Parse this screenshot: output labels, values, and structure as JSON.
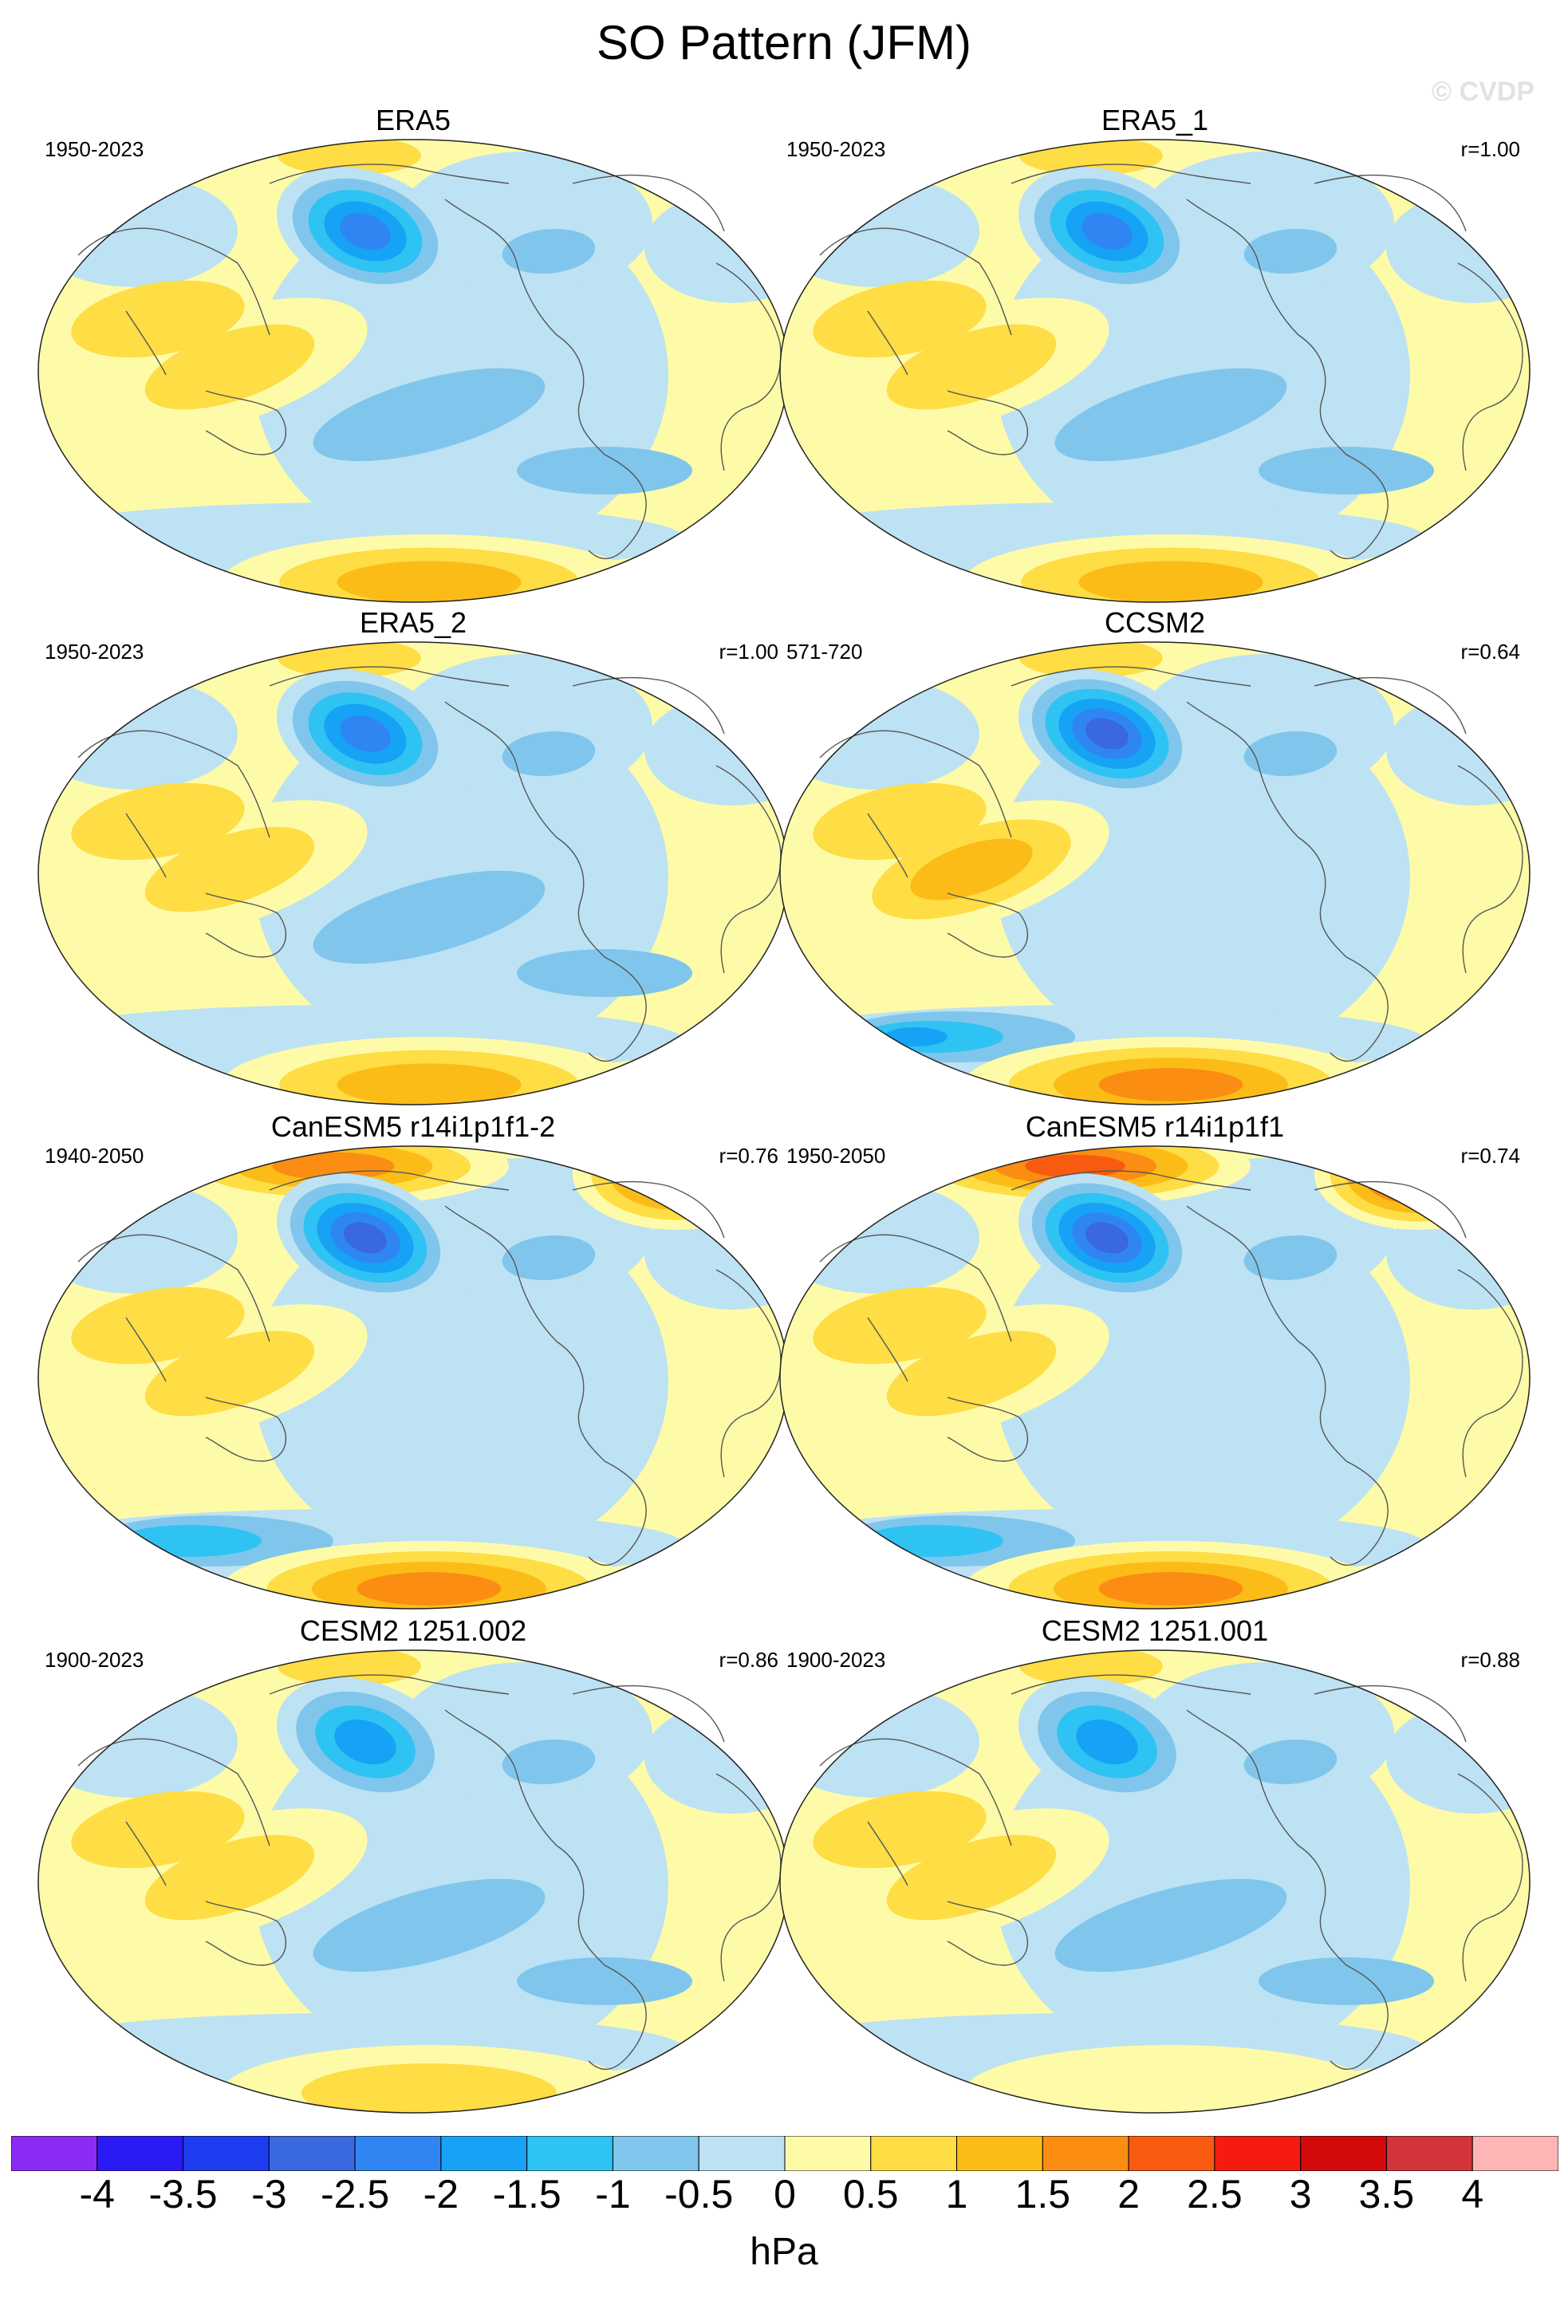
{
  "figure": {
    "title": "SO Pattern (JFM)",
    "watermark": "© CVDP",
    "units": "hPa"
  },
  "colorbar": {
    "ticks": [
      "-4",
      "-3.5",
      "-3",
      "-2.5",
      "-2",
      "-1.5",
      "-1",
      "-0.5",
      "0",
      "0.5",
      "1",
      "1.5",
      "2",
      "2.5",
      "3",
      "3.5",
      "4"
    ],
    "colors": [
      "#8b2cf5",
      "#2a1af5",
      "#1e3cf0",
      "#3a68e0",
      "#2f86f2",
      "#16a3f5",
      "#2ec3f2",
      "#80c6ec",
      "#bde2f3",
      "#fefba8",
      "#fedd45",
      "#fcbc18",
      "#fa8d12",
      "#f85a10",
      "#f51b10",
      "#d20a0a",
      "#d1343b",
      "#fdb5b5"
    ]
  },
  "chart_data": {
    "type": "map",
    "projection": "global equal-area (ellipse), Pacific-centered",
    "variable": "sea level pressure regression",
    "units": "hPa",
    "range": [
      -4,
      4
    ],
    "interval": 0.5,
    "panels": [
      {
        "title": "ERA5",
        "years": "1950-2023",
        "corr": "",
        "centers": {
          "aleutian_low": -2.7,
          "north_atlantic": -1.0,
          "indo_pacific": 1.2,
          "southern_ocean_high": 1.5,
          "pacific_ring": -0.8
        }
      },
      {
        "title": "ERA5_1",
        "years": "1950-2023",
        "corr": "r=1.00",
        "centers": {
          "aleutian_low": -2.7,
          "north_atlantic": -1.0,
          "indo_pacific": 1.2,
          "southern_ocean_high": 1.5,
          "pacific_ring": -0.8
        }
      },
      {
        "title": "ERA5_2",
        "years": "1950-2023",
        "corr": "r=1.00",
        "centers": {
          "aleutian_low": -2.7,
          "north_atlantic": -1.0,
          "indo_pacific": 1.2,
          "southern_ocean_high": 1.5,
          "pacific_ring": -0.8
        }
      },
      {
        "title": "CCSM2",
        "years": "571-720",
        "corr": "r=0.64",
        "centers": {
          "aleutian_low": -3.2,
          "north_atlantic": -1.0,
          "indo_pacific": 1.6,
          "southern_ocean_high": 2.0,
          "southern_ocean_low": -1.7
        }
      },
      {
        "title": "CanESM5 r14i1p1f1-2",
        "years": "1940-2050",
        "corr": "r=0.76",
        "centers": {
          "aleutian_low": -3.4,
          "arctic_high": 2.6,
          "north_atlantic": -1.2,
          "indo_pacific": 1.2,
          "southern_ocean_high": 2.0,
          "southern_ocean_low": -1.5
        }
      },
      {
        "title": "CanESM5 r14i1p1f1",
        "years": "1950-2050",
        "corr": "r=0.74",
        "centers": {
          "aleutian_low": -3.3,
          "arctic_high": 3.2,
          "north_atlantic": -1.2,
          "indo_pacific": 1.2,
          "southern_ocean_high": 2.0,
          "southern_ocean_low": -1.5
        }
      },
      {
        "title": "CESM2 1251.002",
        "years": "1900-2023",
        "corr": "r=0.86",
        "centers": {
          "aleutian_low": -2.2,
          "north_atlantic": -1.0,
          "indo_pacific": 1.1,
          "southern_ocean_high": 1.0,
          "pacific_ring": -0.8
        }
      },
      {
        "title": "CESM2 1251.001",
        "years": "1900-2023",
        "corr": "r=0.88",
        "centers": {
          "aleutian_low": -2.4,
          "north_atlantic": -1.2,
          "indo_pacific": 1.1,
          "southern_ocean_high": 0.9,
          "pacific_ring": -0.8
        }
      }
    ]
  }
}
